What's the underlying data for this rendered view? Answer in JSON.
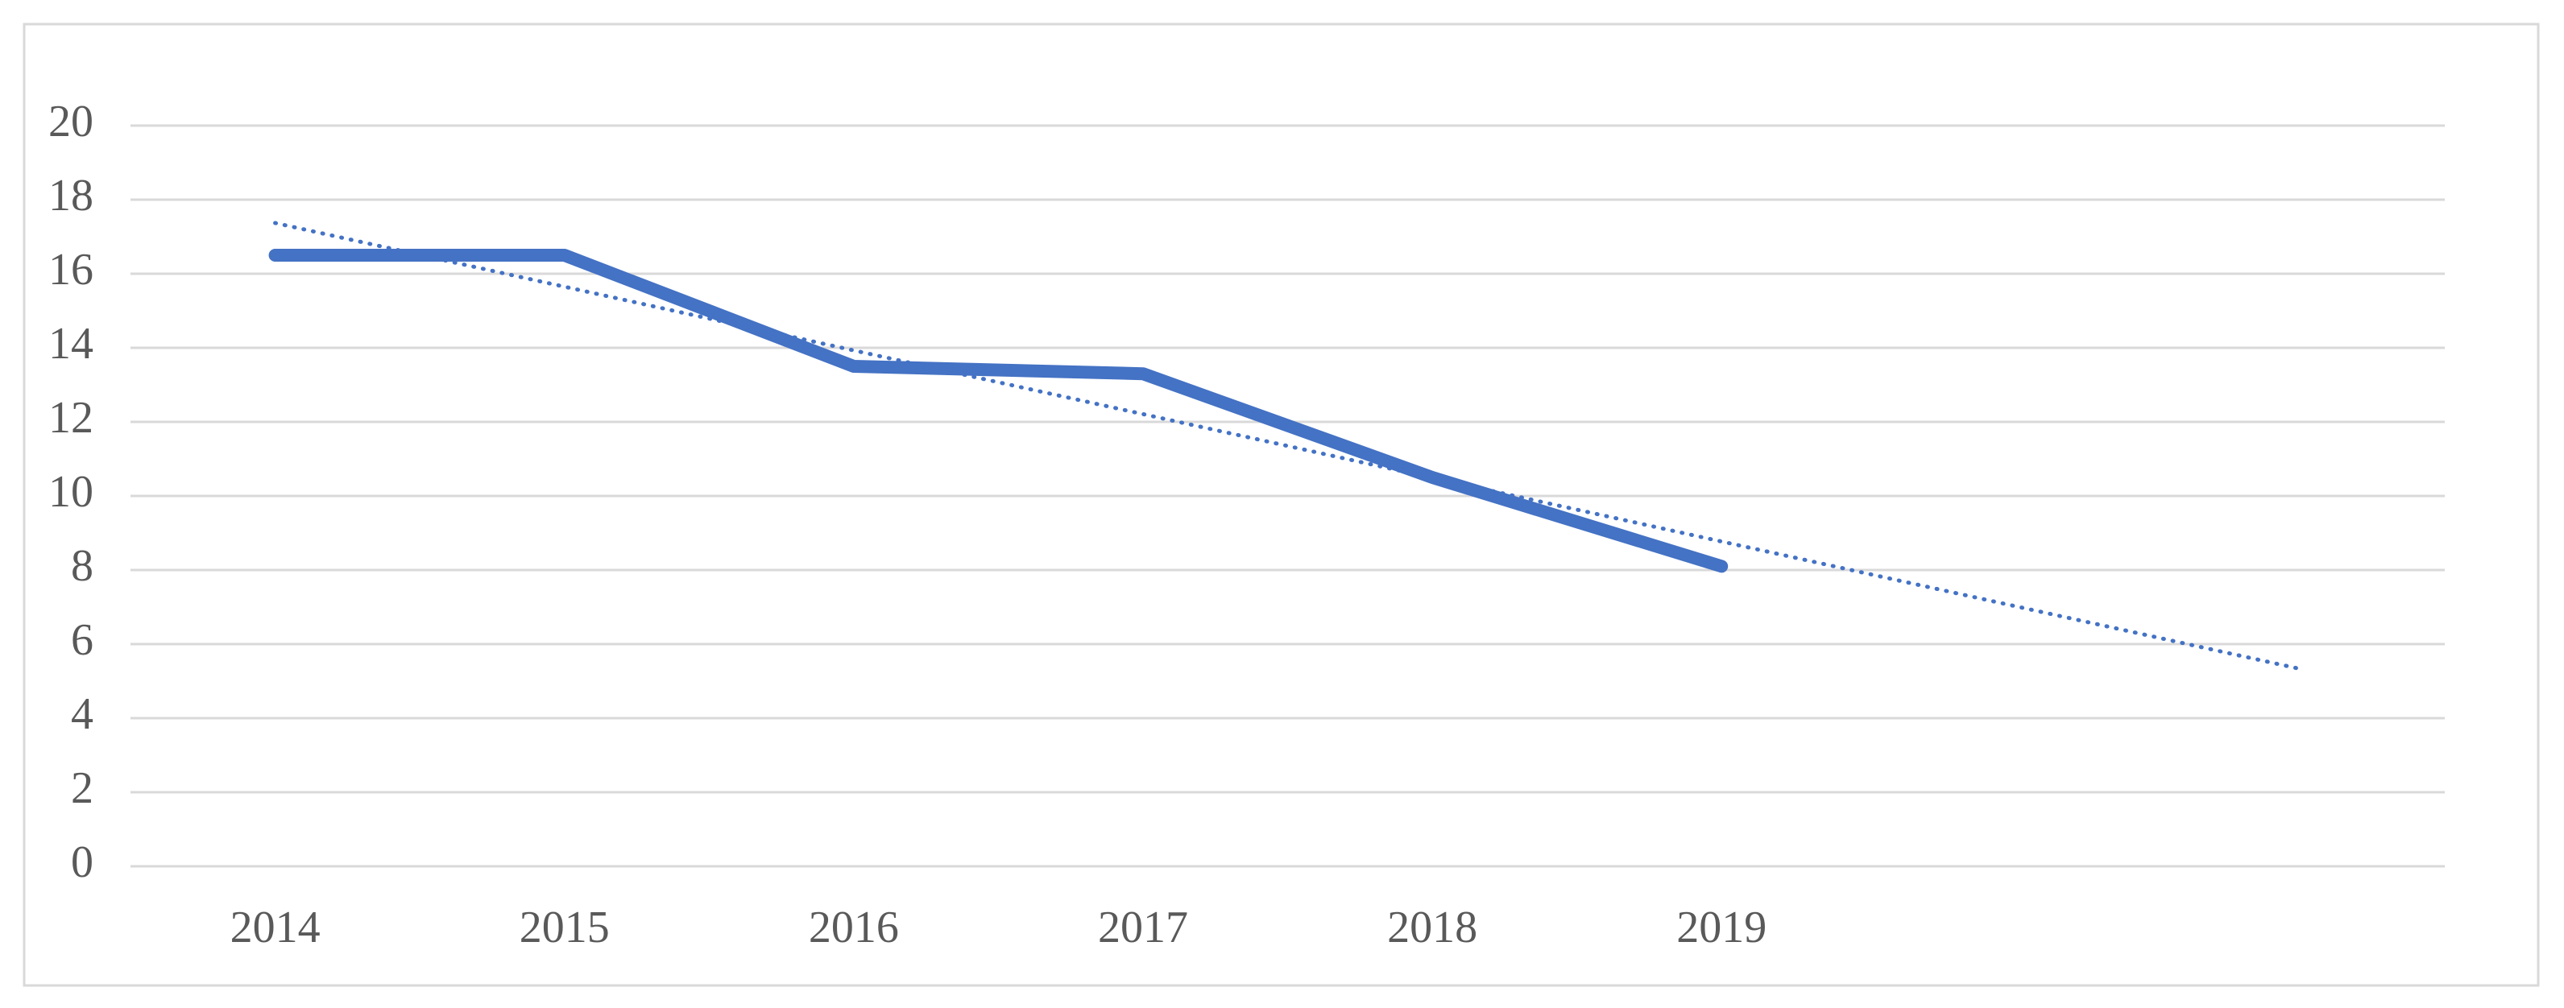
{
  "chart_data": {
    "type": "line",
    "categories": [
      "2014",
      "2015",
      "2016",
      "2017",
      "2018",
      "2019",
      null,
      null
    ],
    "series": [
      {
        "color": "#4472c4",
        "style": "solid",
        "values": [
          16.5,
          16.5,
          13.5,
          13.3,
          10.5,
          8.1,
          null,
          null
        ]
      },
      {
        "color": "#4472c4",
        "style": "dotted",
        "values": [
          17.37,
          15.65,
          13.93,
          12.21,
          10.49,
          8.77,
          7.05,
          5.33
        ]
      }
    ],
    "ylim": [
      0,
      20
    ],
    "yticks": [
      0,
      2,
      4,
      6,
      8,
      10,
      12,
      14,
      16,
      18,
      20
    ],
    "grid": true
  }
}
